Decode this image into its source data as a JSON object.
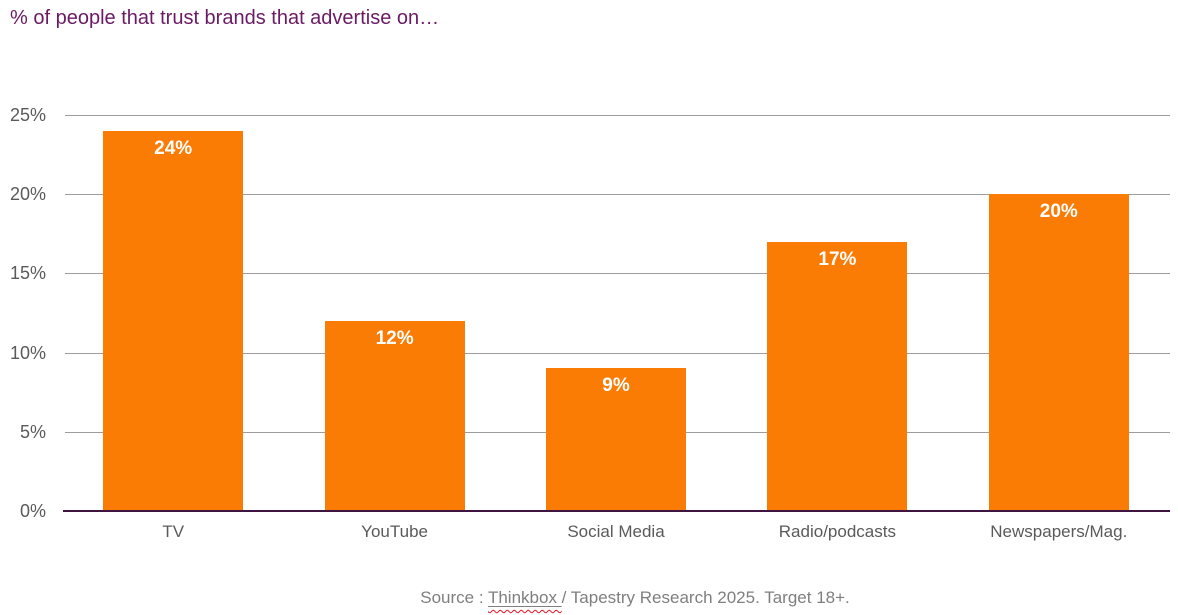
{
  "title": "% of people that trust brands that advertise on…",
  "source": {
    "prefix": "Source : ",
    "link_text": "Thinkbox ",
    "suffix": "/ Tapestry Research 2025. Target 18+."
  },
  "colors": {
    "bar": "#FA7C05",
    "title": "#6B1A64",
    "axis": "#401440",
    "grid": "#9C9C9C",
    "tick": "#5A5A5A",
    "cat": "#5A5A5A",
    "src": "#7F7F7F",
    "barlabel": "#FFFFFF"
  },
  "chart_data": {
    "type": "bar",
    "title": "% of people that trust brands that advertise on…",
    "categories": [
      "TV",
      "YouTube",
      "Social Media",
      "Radio/podcasts",
      "Newspapers/Mag."
    ],
    "values": [
      24,
      12,
      9,
      17,
      20
    ],
    "value_labels": [
      "24%",
      "12%",
      "9%",
      "17%",
      "20%"
    ],
    "xlabel": "",
    "ylabel": "",
    "ylim": [
      0,
      25
    ],
    "yticks": [
      0,
      5,
      10,
      15,
      20,
      25
    ],
    "ytick_labels": [
      "0%",
      "5%",
      "10%",
      "15%",
      "20%",
      "25%"
    ],
    "grid": true,
    "legend": false,
    "bar_color": "#FA7C05",
    "annotation": "Source : Thinkbox / Tapestry Research 2025. Target 18+."
  }
}
